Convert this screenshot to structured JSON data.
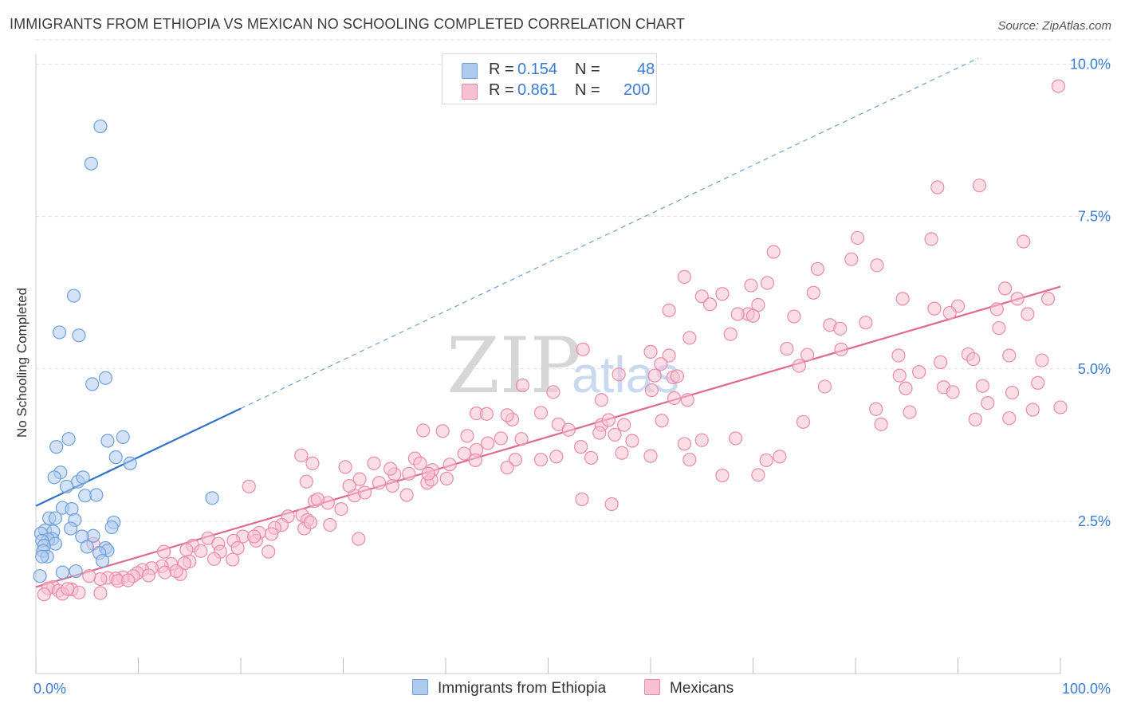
{
  "title": "IMMIGRANTS FROM ETHIOPIA VS MEXICAN NO SCHOOLING COMPLETED CORRELATION CHART",
  "source": "Source: ZipAtlas.com",
  "watermark": {
    "zip": "ZIP",
    "atlas": "atlas"
  },
  "legend": {
    "rows": [
      {
        "r_label": "R =",
        "r_value": "0.154",
        "n_label": "N =",
        "n_value": "48",
        "color": "#aecbef",
        "border": "#6f9fd8"
      },
      {
        "r_label": "R =",
        "r_value": "0.861",
        "n_label": "N =",
        "n_value": "200",
        "color": "#f8c1d2",
        "border": "#e98aa8"
      }
    ]
  },
  "bottom_legend": [
    {
      "label": "Immigrants from Ethiopia",
      "color": "#aecbef",
      "border": "#6f9fd8"
    },
    {
      "label": "Mexicans",
      "color": "#f8c1d2",
      "border": "#e98aa8"
    }
  ],
  "chart_data": {
    "type": "scatter",
    "title": "IMMIGRANTS FROM ETHIOPIA VS MEXICAN NO SCHOOLING COMPLETED CORRELATION CHART",
    "xlabel": "",
    "ylabel": "No Schooling Completed",
    "xlim": [
      0,
      100
    ],
    "ylim": [
      0,
      10.4
    ],
    "x_tick_labels": [
      "0.0%",
      "100.0%"
    ],
    "y_ticks": [
      2.5,
      5.0,
      7.5,
      10.0
    ],
    "y_tick_labels": [
      "2.5%",
      "5.0%",
      "7.5%",
      "10.0%"
    ],
    "grid": true,
    "series": [
      {
        "name": "Immigrants from Ethiopia",
        "color": "#6f9fd8",
        "fill": "#aecbef",
        "trend_color": "#2f73c9",
        "trend": {
          "x0": 0,
          "y0": 2.75,
          "x1": 20,
          "y1": 4.35,
          "dashed_to_x": 92,
          "dashed_to_y": 10.1
        },
        "points": [
          [
            6.3,
            8.98
          ],
          [
            5.4,
            8.37
          ],
          [
            3.7,
            6.2
          ],
          [
            2.3,
            5.6
          ],
          [
            4.2,
            5.55
          ],
          [
            6.8,
            4.85
          ],
          [
            5.5,
            4.75
          ],
          [
            2.0,
            3.72
          ],
          [
            3.2,
            3.85
          ],
          [
            7.0,
            3.82
          ],
          [
            8.5,
            3.88
          ],
          [
            7.8,
            3.55
          ],
          [
            9.2,
            3.45
          ],
          [
            2.4,
            3.3
          ],
          [
            1.8,
            3.22
          ],
          [
            3.0,
            3.07
          ],
          [
            4.1,
            3.15
          ],
          [
            4.6,
            3.22
          ],
          [
            4.8,
            2.92
          ],
          [
            5.9,
            2.93
          ],
          [
            17.2,
            2.88
          ],
          [
            2.6,
            2.72
          ],
          [
            3.5,
            2.7
          ],
          [
            1.3,
            2.55
          ],
          [
            1.9,
            2.55
          ],
          [
            3.8,
            2.52
          ],
          [
            7.6,
            2.48
          ],
          [
            7.4,
            2.4
          ],
          [
            3.4,
            2.38
          ],
          [
            0.9,
            2.35
          ],
          [
            1.7,
            2.33
          ],
          [
            0.5,
            2.3
          ],
          [
            5.6,
            2.26
          ],
          [
            4.5,
            2.25
          ],
          [
            1.6,
            2.21
          ],
          [
            1.2,
            2.2
          ],
          [
            0.6,
            2.18
          ],
          [
            1.9,
            2.13
          ],
          [
            0.8,
            2.1
          ],
          [
            5.0,
            2.08
          ],
          [
            6.8,
            2.06
          ],
          [
            7.0,
            2.02
          ],
          [
            0.7,
            2.01
          ],
          [
            6.2,
            1.98
          ],
          [
            1.1,
            1.92
          ],
          [
            0.6,
            1.92
          ],
          [
            6.5,
            1.85
          ],
          [
            3.9,
            1.68
          ],
          [
            2.6,
            1.66
          ],
          [
            0.4,
            1.6
          ]
        ]
      },
      {
        "name": "Mexicans",
        "color": "#e98aa8",
        "fill": "#f8c1d2",
        "trend_color": "#e0698f",
        "trend": {
          "x0": 0,
          "y0": 1.42,
          "x1": 100,
          "y1": 6.35
        },
        "points": [
          [
            99.8,
            9.64
          ],
          [
            92.1,
            8.01
          ],
          [
            88.0,
            7.98
          ],
          [
            80.2,
            7.15
          ],
          [
            87.4,
            7.13
          ],
          [
            96.4,
            7.09
          ],
          [
            72.0,
            6.92
          ],
          [
            79.6,
            6.8
          ],
          [
            82.1,
            6.7
          ],
          [
            76.3,
            6.64
          ],
          [
            63.3,
            6.51
          ],
          [
            71.4,
            6.41
          ],
          [
            69.8,
            6.37
          ],
          [
            94.6,
            6.32
          ],
          [
            75.9,
            6.25
          ],
          [
            67.0,
            6.23
          ],
          [
            65.0,
            6.19
          ],
          [
            65.8,
            6.06
          ],
          [
            70.5,
            6.05
          ],
          [
            84.6,
            6.15
          ],
          [
            95.8,
            6.15
          ],
          [
            98.8,
            6.15
          ],
          [
            87.7,
            5.99
          ],
          [
            90.0,
            6.03
          ],
          [
            93.8,
            5.98
          ],
          [
            61.8,
            5.96
          ],
          [
            69.5,
            5.9
          ],
          [
            70.0,
            5.87
          ],
          [
            74.0,
            5.86
          ],
          [
            68.5,
            5.9
          ],
          [
            77.5,
            5.72
          ],
          [
            81.0,
            5.76
          ],
          [
            78.5,
            5.66
          ],
          [
            89.2,
            5.92
          ],
          [
            96.8,
            5.9
          ],
          [
            94.0,
            5.67
          ],
          [
            67.8,
            5.57
          ],
          [
            63.8,
            5.51
          ],
          [
            53.4,
            5.32
          ],
          [
            60.0,
            5.28
          ],
          [
            61.8,
            5.22
          ],
          [
            73.3,
            5.33
          ],
          [
            75.3,
            5.23
          ],
          [
            78.6,
            5.32
          ],
          [
            84.2,
            5.22
          ],
          [
            91.0,
            5.24
          ],
          [
            95.0,
            5.22
          ],
          [
            98.2,
            5.14
          ],
          [
            91.5,
            5.16
          ],
          [
            88.3,
            5.11
          ],
          [
            61.0,
            5.08
          ],
          [
            56.9,
            4.91
          ],
          [
            60.4,
            4.89
          ],
          [
            62.2,
            4.86
          ],
          [
            62.6,
            4.88
          ],
          [
            74.5,
            5.05
          ],
          [
            84.3,
            4.89
          ],
          [
            86.2,
            4.95
          ],
          [
            97.8,
            4.77
          ],
          [
            92.4,
            4.72
          ],
          [
            88.6,
            4.7
          ],
          [
            89.5,
            4.62
          ],
          [
            84.9,
            4.68
          ],
          [
            77.0,
            4.71
          ],
          [
            60.1,
            4.65
          ],
          [
            62.3,
            4.52
          ],
          [
            63.6,
            4.49
          ],
          [
            50.5,
            4.62
          ],
          [
            47.5,
            4.73
          ],
          [
            55.2,
            4.49
          ],
          [
            95.3,
            4.61
          ],
          [
            92.9,
            4.44
          ],
          [
            97.3,
            4.33
          ],
          [
            100.0,
            4.37
          ],
          [
            82.0,
            4.34
          ],
          [
            85.3,
            4.29
          ],
          [
            95.0,
            4.19
          ],
          [
            91.7,
            4.17
          ],
          [
            82.5,
            4.09
          ],
          [
            74.9,
            4.13
          ],
          [
            61.1,
            4.15
          ],
          [
            55.2,
            4.08
          ],
          [
            51.0,
            4.09
          ],
          [
            55.9,
            4.16
          ],
          [
            57.4,
            4.08
          ],
          [
            46.5,
            4.17
          ],
          [
            43.0,
            4.27
          ],
          [
            44.0,
            4.26
          ],
          [
            46.0,
            4.24
          ],
          [
            49.3,
            4.28
          ],
          [
            52.0,
            4.0
          ],
          [
            55.0,
            3.95
          ],
          [
            56.5,
            3.92
          ],
          [
            47.4,
            3.85
          ],
          [
            45.4,
            3.86
          ],
          [
            42.1,
            3.9
          ],
          [
            44.1,
            3.78
          ],
          [
            43.0,
            3.67
          ],
          [
            39.7,
            3.98
          ],
          [
            37.8,
            3.99
          ],
          [
            53.2,
            3.72
          ],
          [
            57.2,
            3.62
          ],
          [
            58.2,
            3.82
          ],
          [
            65.0,
            3.83
          ],
          [
            68.3,
            3.86
          ],
          [
            63.3,
            3.77
          ],
          [
            60.0,
            3.57
          ],
          [
            54.2,
            3.54
          ],
          [
            50.8,
            3.56
          ],
          [
            49.3,
            3.51
          ],
          [
            46.8,
            3.51
          ],
          [
            46.0,
            3.38
          ],
          [
            42.9,
            3.5
          ],
          [
            41.8,
            3.61
          ],
          [
            40.4,
            3.43
          ],
          [
            38.7,
            3.34
          ],
          [
            36.4,
            3.28
          ],
          [
            33.0,
            3.45
          ],
          [
            30.2,
            3.39
          ],
          [
            31.6,
            3.19
          ],
          [
            35.0,
            3.27
          ],
          [
            34.6,
            3.36
          ],
          [
            37.0,
            3.53
          ],
          [
            25.9,
            3.58
          ],
          [
            20.8,
            3.07
          ],
          [
            26.4,
            3.15
          ],
          [
            28.5,
            2.8
          ],
          [
            27.2,
            2.83
          ],
          [
            29.8,
            2.7
          ],
          [
            31.1,
            2.92
          ],
          [
            32.1,
            2.97
          ],
          [
            36.2,
            2.93
          ],
          [
            34.8,
            3.08
          ],
          [
            38.2,
            3.13
          ],
          [
            40.1,
            3.2
          ],
          [
            37.5,
            3.45
          ],
          [
            38.6,
            3.18
          ],
          [
            27.0,
            3.45
          ],
          [
            30.6,
            3.08
          ],
          [
            38.3,
            3.28
          ],
          [
            33.5,
            3.13
          ],
          [
            53.3,
            2.86
          ],
          [
            56.2,
            2.78
          ],
          [
            70.5,
            3.26
          ],
          [
            71.3,
            3.5
          ],
          [
            72.6,
            3.56
          ],
          [
            63.8,
            3.51
          ],
          [
            67.0,
            3.25
          ],
          [
            26.0,
            2.6
          ],
          [
            24.6,
            2.58
          ],
          [
            26.5,
            2.52
          ],
          [
            28.7,
            2.44
          ],
          [
            24.0,
            2.44
          ],
          [
            21.8,
            2.31
          ],
          [
            23.3,
            2.39
          ],
          [
            23.0,
            2.29
          ],
          [
            20.2,
            2.25
          ],
          [
            19.3,
            2.18
          ],
          [
            16.8,
            2.22
          ],
          [
            17.8,
            2.13
          ],
          [
            15.3,
            2.1
          ],
          [
            14.7,
            2.03
          ],
          [
            12.5,
            2.0
          ],
          [
            21.5,
            2.18
          ],
          [
            19.7,
            2.06
          ],
          [
            18.0,
            2.0
          ],
          [
            16.1,
            2.01
          ],
          [
            15.0,
            1.84
          ],
          [
            17.4,
            1.88
          ],
          [
            19.2,
            1.87
          ],
          [
            14.5,
            1.81
          ],
          [
            13.2,
            1.8
          ],
          [
            12.3,
            1.76
          ],
          [
            11.3,
            1.73
          ],
          [
            10.4,
            1.7
          ],
          [
            9.9,
            1.65
          ],
          [
            12.6,
            1.66
          ],
          [
            14.1,
            1.63
          ],
          [
            13.7,
            1.68
          ],
          [
            11.0,
            1.61
          ],
          [
            9.5,
            1.6
          ],
          [
            8.5,
            1.58
          ],
          [
            7.8,
            1.56
          ],
          [
            7.0,
            1.57
          ],
          [
            6.3,
            1.55
          ],
          [
            5.2,
            1.6
          ],
          [
            8.0,
            1.52
          ],
          [
            9.0,
            1.53
          ],
          [
            1.7,
            1.42
          ],
          [
            1.2,
            1.4
          ],
          [
            2.2,
            1.36
          ],
          [
            3.5,
            1.38
          ],
          [
            4.2,
            1.33
          ],
          [
            6.3,
            1.32
          ],
          [
            2.6,
            1.31
          ],
          [
            0.8,
            1.3
          ],
          [
            3.1,
            1.39
          ],
          [
            5.6,
            2.13
          ],
          [
            26.2,
            2.38
          ],
          [
            31.5,
            2.21
          ],
          [
            22.7,
            2.0
          ],
          [
            26.8,
            2.48
          ],
          [
            27.5,
            2.86
          ],
          [
            21.3,
            2.25
          ]
        ]
      }
    ],
    "watermark": "ZIPatlas"
  }
}
